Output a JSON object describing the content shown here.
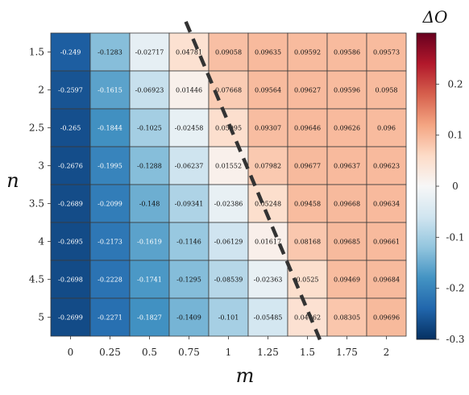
{
  "chart_data": {
    "type": "heatmap",
    "xlabel": "m",
    "ylabel": "n",
    "colorbar_label": "ΔO",
    "x": [
      "0",
      "0.25",
      "0.5",
      "0.75",
      "1",
      "1.25",
      "1.5",
      "1.75",
      "2"
    ],
    "y": [
      "1.5",
      "2",
      "2.5",
      "3",
      "3.5",
      "4",
      "4.5",
      "5"
    ],
    "values": [
      [
        -0.249,
        -0.1283,
        -0.02717,
        0.04781,
        0.09058,
        0.09635,
        0.09592,
        0.09586,
        0.09573
      ],
      [
        -0.2597,
        -0.1615,
        -0.06923,
        0.01446,
        0.07668,
        0.09564,
        0.09627,
        0.09596,
        0.0958
      ],
      [
        -0.265,
        -0.1844,
        -0.1025,
        -0.02458,
        0.05095,
        0.09307,
        0.09646,
        0.09626,
        0.096
      ],
      [
        -0.2676,
        -0.1995,
        -0.1288,
        -0.06237,
        0.01552,
        0.07982,
        0.09677,
        0.09637,
        0.09623
      ],
      [
        -0.2689,
        -0.2099,
        -0.148,
        -0.09341,
        -0.02386,
        0.05248,
        0.09458,
        0.09668,
        0.09634
      ],
      [
        -0.2695,
        -0.2173,
        -0.1619,
        -0.1146,
        -0.06129,
        0.01617,
        0.08168,
        0.09685,
        0.09661
      ],
      [
        -0.2698,
        -0.2228,
        -0.1741,
        -0.1295,
        -0.08539,
        -0.02363,
        0.0525,
        0.09469,
        0.09684
      ],
      [
        -0.2699,
        -0.2271,
        -0.1827,
        -0.1409,
        -0.101,
        -0.05485,
        0.04662,
        0.08305,
        0.09696
      ]
    ],
    "value_labels": [
      [
        "-0.249",
        "-0.1283",
        "-0.02717",
        "0.04781",
        "0.09058",
        "0.09635",
        "0.09592",
        "0.09586",
        "0.09573"
      ],
      [
        "-0.2597",
        "-0.1615",
        "-0.06923",
        "0.01446",
        "0.07668",
        "0.09564",
        "0.09627",
        "0.09596",
        "0.0958"
      ],
      [
        "-0.265",
        "-0.1844",
        "-0.1025",
        "-0.02458",
        "0.05095",
        "0.09307",
        "0.09646",
        "0.09626",
        "0.096"
      ],
      [
        "-0.2676",
        "-0.1995",
        "-0.1288",
        "-0.06237",
        "0.01552",
        "0.07982",
        "0.09677",
        "0.09637",
        "0.09623"
      ],
      [
        "-0.2689",
        "-0.2099",
        "-0.148",
        "-0.09341",
        "-0.02386",
        "0.05248",
        "0.09458",
        "0.09668",
        "0.09634"
      ],
      [
        "-0.2695",
        "-0.2173",
        "-0.1619",
        "-0.1146",
        "-0.06129",
        "0.01617",
        "0.08168",
        "0.09685",
        "0.09661"
      ],
      [
        "-0.2698",
        "-0.2228",
        "-0.1741",
        "-0.1295",
        "-0.08539",
        "-0.02363",
        "0.0525",
        "0.09469",
        "0.09684"
      ],
      [
        "-0.2699",
        "-0.2271",
        "-0.1827",
        "-0.1409",
        "-0.101",
        "-0.05485",
        "0.04662",
        "0.08305",
        "0.09696"
      ]
    ],
    "colorbar": {
      "range": [
        -0.3,
        0.3
      ],
      "ticks": [
        -0.3,
        -0.2,
        -0.1,
        0,
        0.1,
        0.2
      ],
      "tick_labels": [
        "-0.3",
        "-0.2",
        "-0.1",
        "0",
        "0.1",
        "0.2"
      ],
      "colormap": "RdBu_r",
      "stops": [
        "#053061",
        "#2166ac",
        "#4393c3",
        "#92c5de",
        "#d1e5f0",
        "#f7f7f7",
        "#fddbc7",
        "#f4a582",
        "#d6604d",
        "#b2182b",
        "#67001f"
      ]
    },
    "boundary_line": {
      "style": "dashed",
      "color": "#333333",
      "from": {
        "m": 0.73,
        "n": 1.1
      },
      "to": {
        "m": 1.59,
        "n": 5.35
      }
    },
    "grid": true
  }
}
